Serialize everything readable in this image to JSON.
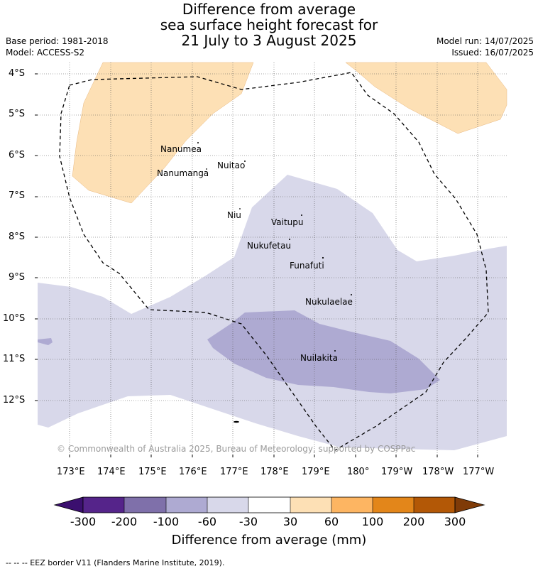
{
  "title": {
    "line1": "Difference from average",
    "line2": "sea surface height forecast for",
    "line3": "21 July to 3 August 2025"
  },
  "meta": {
    "base_period": "Base period: 1981-2018",
    "model": "Model: ACCESS-S2",
    "model_run": "Model run: 14/07/2025",
    "issued": "Issued: 16/07/2025"
  },
  "axes": {
    "lat_labels": [
      "4°S",
      "5°S",
      "6°S",
      "7°S",
      "8°S",
      "9°S",
      "10°S",
      "11°S",
      "12°S"
    ],
    "lon_labels": [
      "173°E",
      "174°E",
      "175°E",
      "176°E",
      "177°E",
      "178°E",
      "179°E",
      "180°",
      "179°W",
      "178°W",
      "177°W"
    ]
  },
  "islands": [
    {
      "name": "Nanumea"
    },
    {
      "name": "Nuitao"
    },
    {
      "name": "Nanumanga"
    },
    {
      "name": "Niu"
    },
    {
      "name": "Vaitupu"
    },
    {
      "name": "Nukufetau"
    },
    {
      "name": "Funafuti"
    },
    {
      "name": "Nukulaelae"
    },
    {
      "name": "Nuilakita"
    }
  ],
  "copyright": "© Commonwealth of Australia 2025, Bureau of Meteorology, supported by COSPPac",
  "colorbar": {
    "title": "Difference from average (mm)",
    "labels": [
      "-300",
      "-200",
      "-100",
      "-60",
      "-30",
      "30",
      "60",
      "100",
      "200",
      "300"
    ],
    "colors": [
      "#3b0f6f",
      "#55248a",
      "#7f70aa",
      "#aeaad2",
      "#d8d8ea",
      "#ffffff",
      "#fde0b5",
      "#fdb562",
      "#e3861a",
      "#b35806",
      "#7f3b08"
    ]
  },
  "footer": "--  --  -- EEZ border V11 (Flanders Marine Institute, 2019)."
}
